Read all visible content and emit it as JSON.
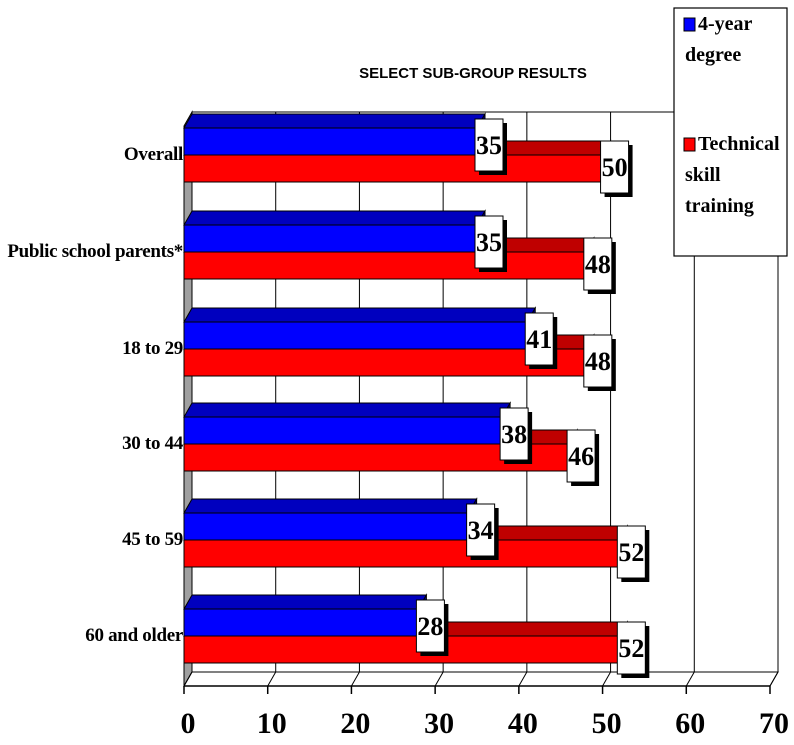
{
  "chart_data": {
    "type": "bar",
    "orientation": "horizontal",
    "title": "SELECT SUB-GROUP RESULTS",
    "categories": [
      "Overall",
      "Public school parents*",
      "18 to 29",
      "30 to 44",
      "45 to 59",
      "60 and older"
    ],
    "series": [
      {
        "name": "4-year degree",
        "legend_lines": [
          "4-year",
          "degree"
        ],
        "color": "#0000ff",
        "values": [
          35,
          35,
          41,
          38,
          34,
          28
        ]
      },
      {
        "name": "Technical skill training",
        "legend_lines": [
          "Technical",
          "skill",
          "training"
        ],
        "color": "#ff0000",
        "values": [
          50,
          48,
          48,
          46,
          52,
          52
        ]
      }
    ],
    "x_ticks": [
      "0",
      "10",
      "20",
      "30",
      "40",
      "50",
      "60",
      "70"
    ],
    "xlim": [
      0,
      70
    ],
    "grid": true,
    "legend_position": "top-right",
    "bar_style": "3d"
  }
}
